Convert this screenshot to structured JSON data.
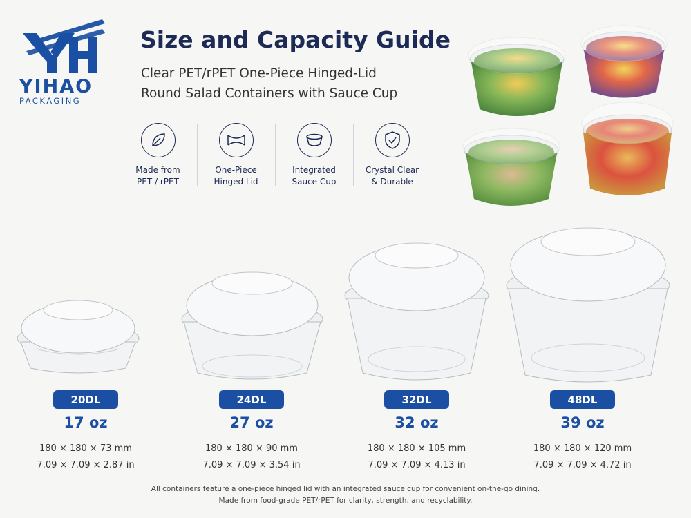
{
  "brand": {
    "name": "YIHAO",
    "sub": "PACKAGING",
    "color": "#1a4fa3"
  },
  "header": {
    "title": "Size and Capacity Guide",
    "subtitle_line1": "Clear PET/rPET One-Piece Hinged-Lid",
    "subtitle_line2": "Round Salad Containers with Sauce Cup"
  },
  "features": [
    {
      "icon": "leaf-icon",
      "label": "Made from\nPET / rPET"
    },
    {
      "icon": "hinged-lid-icon",
      "label": "One-Piece\nHinged Lid"
    },
    {
      "icon": "sauce-cup-icon",
      "label": "Integrated\nSauce Cup"
    },
    {
      "icon": "shield-check-icon",
      "label": "Crystal Clear\n& Durable"
    }
  ],
  "products": [
    {
      "code": "20DL",
      "capacity": "17 oz",
      "mm": "180 × 180 × 73 mm",
      "inch": "7.09 × 7.09 × 2.87 in"
    },
    {
      "code": "24DL",
      "capacity": "27 oz",
      "mm": "180 × 180 × 90 mm",
      "inch": "7.09 × 7.09 × 3.54 in"
    },
    {
      "code": "32DL",
      "capacity": "32 oz",
      "mm": "180 × 180 × 105 mm",
      "inch": "7.09 × 7.09 × 4.13 in"
    },
    {
      "code": "48DL",
      "capacity": "39 oz",
      "mm": "180 × 180 × 120 mm",
      "inch": "7.09 × 7.09 × 4.72 in"
    }
  ],
  "footer": {
    "line1": "All containers feature a one-piece hinged lid with an integrated sauce cup for convenient on-the-go dining.",
    "line2": "Made from food-grade PET/rPET for clarity, strength, and recyclability."
  }
}
